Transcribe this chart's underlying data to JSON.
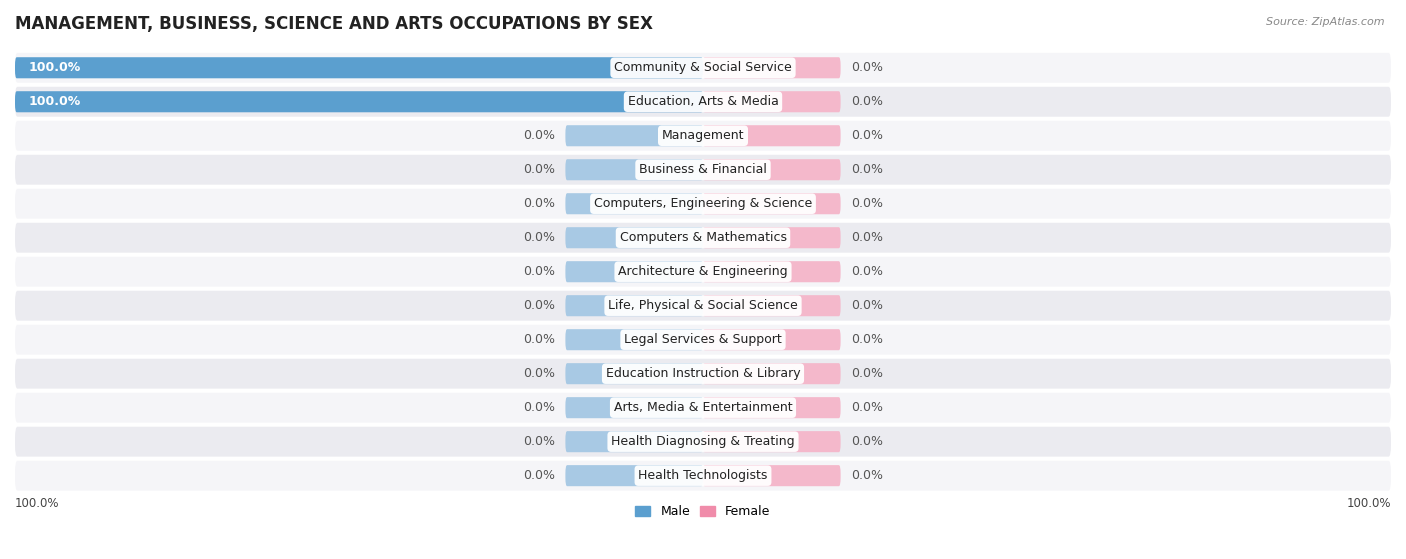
{
  "title": "MANAGEMENT, BUSINESS, SCIENCE AND ARTS OCCUPATIONS BY SEX",
  "source": "Source: ZipAtlas.com",
  "categories": [
    "Community & Social Service",
    "Education, Arts & Media",
    "Management",
    "Business & Financial",
    "Computers, Engineering & Science",
    "Computers & Mathematics",
    "Architecture & Engineering",
    "Life, Physical & Social Science",
    "Legal Services & Support",
    "Education Instruction & Library",
    "Arts, Media & Entertainment",
    "Health Diagnosing & Treating",
    "Health Technologists"
  ],
  "male_values": [
    100.0,
    100.0,
    0.0,
    0.0,
    0.0,
    0.0,
    0.0,
    0.0,
    0.0,
    0.0,
    0.0,
    0.0,
    0.0
  ],
  "female_values": [
    0.0,
    0.0,
    0.0,
    0.0,
    0.0,
    0.0,
    0.0,
    0.0,
    0.0,
    0.0,
    0.0,
    0.0,
    0.0
  ],
  "male_color_strong": "#5b9fcf",
  "male_color_light": "#a8c9e4",
  "female_color_strong": "#f08caa",
  "female_color_light": "#f4b8cb",
  "row_bg_light": "#f5f5f8",
  "row_bg_dark": "#ebebf0",
  "legend_male": "Male",
  "legend_female": "Female",
  "title_fontsize": 12,
  "label_fontsize": 9,
  "source_fontsize": 8,
  "placeholder_size": 20,
  "xlim_min": -100,
  "xlim_max": 100
}
